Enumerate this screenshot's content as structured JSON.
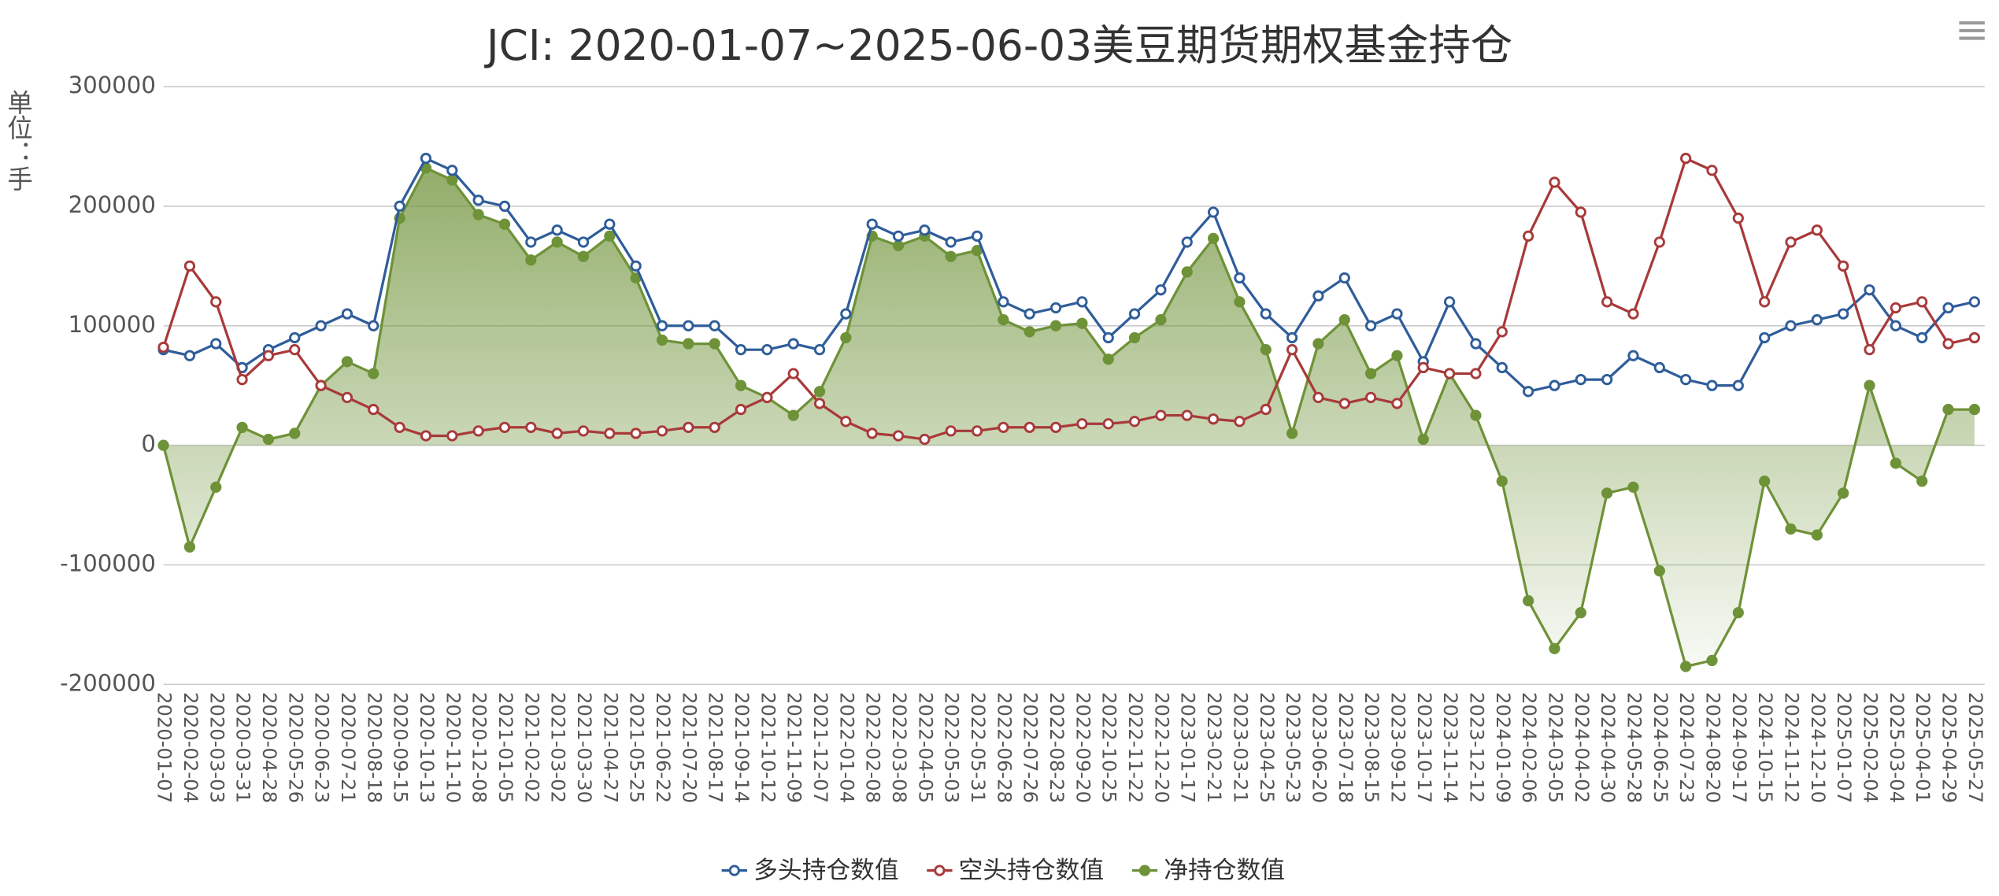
{
  "chart_data": {
    "type": "line",
    "title": "JCI: 2020-01-07~2025-06-03美豆期货期权基金持仓",
    "y_label": "单位：手",
    "categories": [
      "2020-01-07",
      "2020-02-04",
      "2020-03-03",
      "2020-03-31",
      "2020-04-28",
      "2020-05-26",
      "2020-06-23",
      "2020-07-21",
      "2020-08-18",
      "2020-09-15",
      "2020-10-13",
      "2020-11-10",
      "2020-12-08",
      "2021-01-05",
      "2021-02-02",
      "2021-03-02",
      "2021-03-30",
      "2021-04-27",
      "2021-05-25",
      "2021-06-22",
      "2021-07-20",
      "2021-08-17",
      "2021-09-14",
      "2021-10-12",
      "2021-11-09",
      "2021-12-07",
      "2022-01-04",
      "2022-02-08",
      "2022-03-08",
      "2022-04-05",
      "2022-05-03",
      "2022-05-31",
      "2022-06-28",
      "2022-07-26",
      "2022-08-23",
      "2022-09-20",
      "2022-10-25",
      "2022-11-22",
      "2022-12-20",
      "2023-01-17",
      "2023-02-21",
      "2023-03-21",
      "2023-04-25",
      "2023-05-23",
      "2023-06-20",
      "2023-07-18",
      "2023-08-15",
      "2023-09-12",
      "2023-10-17",
      "2023-11-14",
      "2023-12-12",
      "2024-01-09",
      "2024-02-06",
      "2024-03-05",
      "2024-04-02",
      "2024-04-30",
      "2024-05-28",
      "2024-06-25",
      "2024-07-23",
      "2024-08-20",
      "2024-09-17",
      "2024-10-15",
      "2024-11-12",
      "2024-12-10",
      "2025-01-07",
      "2025-02-04",
      "2025-03-04",
      "2025-04-01",
      "2025-04-29",
      "2025-05-27"
    ],
    "series": [
      {
        "name": "多头持仓数值",
        "color": "#2f5d9a",
        "values": [
          80000,
          75000,
          85000,
          65000,
          80000,
          90000,
          100000,
          110000,
          100000,
          200000,
          240000,
          230000,
          205000,
          200000,
          170000,
          180000,
          170000,
          185000,
          150000,
          100000,
          100000,
          100000,
          80000,
          80000,
          85000,
          80000,
          110000,
          185000,
          175000,
          180000,
          170000,
          175000,
          120000,
          110000,
          115000,
          120000,
          90000,
          110000,
          130000,
          170000,
          195000,
          140000,
          110000,
          90000,
          125000,
          140000,
          100000,
          110000,
          70000,
          120000,
          85000,
          65000,
          45000,
          50000,
          55000,
          55000,
          75000,
          65000,
          55000,
          50000,
          50000,
          90000,
          100000,
          105000,
          110000,
          130000,
          100000,
          90000,
          115000,
          120000
        ]
      },
      {
        "name": "空头持仓数值",
        "color": "#a83a3a",
        "values": [
          82000,
          150000,
          120000,
          55000,
          75000,
          80000,
          50000,
          40000,
          30000,
          15000,
          8000,
          8000,
          12000,
          15000,
          15000,
          10000,
          12000,
          10000,
          10000,
          12000,
          15000,
          15000,
          30000,
          40000,
          60000,
          35000,
          20000,
          10000,
          8000,
          5000,
          12000,
          12000,
          15000,
          15000,
          15000,
          18000,
          18000,
          20000,
          25000,
          25000,
          22000,
          20000,
          30000,
          80000,
          40000,
          35000,
          40000,
          35000,
          65000,
          60000,
          60000,
          95000,
          175000,
          220000,
          195000,
          120000,
          110000,
          170000,
          240000,
          230000,
          190000,
          120000,
          170000,
          180000,
          150000,
          80000,
          115000,
          120000,
          85000,
          90000
        ]
      },
      {
        "name": "净持仓数值",
        "color": "#6e9238",
        "values": [
          0,
          -85000,
          -35000,
          15000,
          5000,
          10000,
          50000,
          70000,
          60000,
          190000,
          232000,
          222000,
          193000,
          185000,
          155000,
          170000,
          158000,
          175000,
          140000,
          88000,
          85000,
          85000,
          50000,
          40000,
          25000,
          45000,
          90000,
          175000,
          167000,
          175000,
          158000,
          163000,
          105000,
          95000,
          100000,
          102000,
          72000,
          90000,
          105000,
          145000,
          173000,
          120000,
          80000,
          10000,
          85000,
          105000,
          60000,
          75000,
          5000,
          60000,
          25000,
          -30000,
          -130000,
          -170000,
          -140000,
          -40000,
          -35000,
          -105000,
          -185000,
          -180000,
          -140000,
          -30000,
          -70000,
          -75000,
          -40000,
          50000,
          -15000,
          -30000,
          30000,
          30000
        ]
      }
    ],
    "ylim": [
      -200000,
      300000
    ],
    "yticks": [
      300000,
      200000,
      100000,
      0,
      -100000,
      -200000
    ],
    "grid": true
  }
}
